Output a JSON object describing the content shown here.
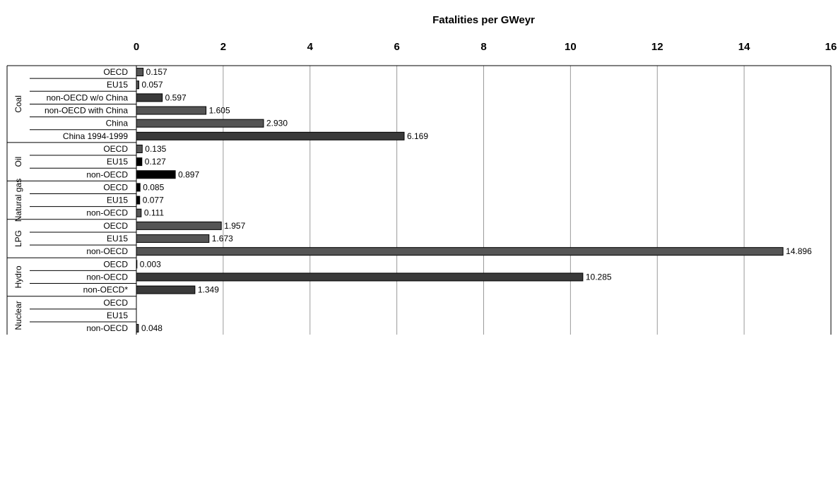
{
  "chart_data": {
    "type": "bar",
    "orientation": "horizontal",
    "xlabel": "Fatalities per GWeyr",
    "xlim": [
      0,
      16
    ],
    "xticks": [
      "0",
      "2",
      "4",
      "6",
      "8",
      "10",
      "12",
      "14",
      "16"
    ],
    "grid": "vertical",
    "x_axis_position": "top",
    "groups": [
      {
        "name": "Coal",
        "items": [
          {
            "label": "OECD",
            "value": 0.157,
            "value_label": "0.157",
            "color": "#555555"
          },
          {
            "label": "EU15",
            "value": 0.057,
            "value_label": "0.057",
            "color": "#555555"
          },
          {
            "label": "non-OECD w/o China",
            "value": 0.597,
            "value_label": "0.597",
            "color": "#3a3a3a"
          },
          {
            "label": "non-OECD with China",
            "value": 1.605,
            "value_label": "1.605",
            "color": "#555555"
          },
          {
            "label": "China",
            "value": 2.93,
            "value_label": "2.930",
            "color": "#555555"
          },
          {
            "label": "China 1994-1999",
            "value": 6.169,
            "value_label": "6.169",
            "color": "#3a3a3a"
          }
        ]
      },
      {
        "name": "Oil",
        "items": [
          {
            "label": "OECD",
            "value": 0.135,
            "value_label": "0.135",
            "color": "#555555"
          },
          {
            "label": "EU15",
            "value": 0.127,
            "value_label": "0.127",
            "color": "#000000"
          },
          {
            "label": "non-OECD",
            "value": 0.897,
            "value_label": "0.897",
            "color": "#000000"
          }
        ]
      },
      {
        "name": "Natural gas",
        "items": [
          {
            "label": "OECD",
            "value": 0.085,
            "value_label": "0.085",
            "color": "#000000"
          },
          {
            "label": "EU15",
            "value": 0.077,
            "value_label": "0.077",
            "color": "#000000"
          },
          {
            "label": "non-OECD",
            "value": 0.111,
            "value_label": "0.111",
            "color": "#555555"
          }
        ]
      },
      {
        "name": "LPG",
        "items": [
          {
            "label": "OECD",
            "value": 1.957,
            "value_label": "1.957",
            "color": "#555555"
          },
          {
            "label": "EU15",
            "value": 1.673,
            "value_label": "1.673",
            "color": "#555555"
          },
          {
            "label": "non-OECD",
            "value": 14.896,
            "value_label": "14.896",
            "color": "#555555"
          }
        ]
      },
      {
        "name": "Hydro",
        "items": [
          {
            "label": "OECD",
            "value": 0.003,
            "value_label": "0.003",
            "color": "#555555"
          },
          {
            "label": "non-OECD",
            "value": 10.285,
            "value_label": "10.285",
            "color": "#3a3a3a"
          },
          {
            "label": "non-OECD*",
            "value": 1.349,
            "value_label": "1.349",
            "color": "#3a3a3a"
          }
        ]
      },
      {
        "name": "Nuclear",
        "items": [
          {
            "label": "OECD",
            "value": null,
            "value_label": "",
            "color": "#555555"
          },
          {
            "label": "EU15",
            "value": null,
            "value_label": "",
            "color": "#555555"
          },
          {
            "label": "non-OECD",
            "value": 0.048,
            "value_label": "0.048",
            "color": "#555555"
          }
        ]
      }
    ]
  }
}
